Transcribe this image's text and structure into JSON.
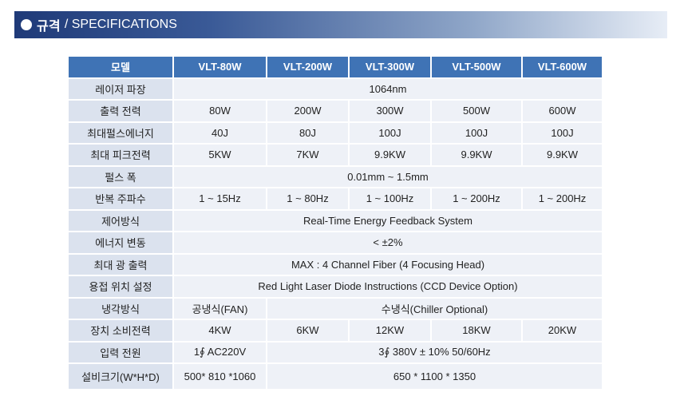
{
  "header": {
    "title": "규격",
    "subtitle": "/ SPECIFICATIONS"
  },
  "colors": {
    "header_dark": "#1f3a78",
    "table_header": "#3f73b5",
    "label_cell": "#dbe2ee",
    "value_cell": "#eef1f7"
  },
  "table": {
    "columns": [
      "모델",
      "VLT-80W",
      "VLT-200W",
      "VLT-300W",
      "VLT-500W",
      "VLT-600W"
    ],
    "rows": {
      "wavelength": {
        "label": "레이저 파장",
        "value": "1064nm"
      },
      "output_power": {
        "label": "출력 전력",
        "values": [
          "80W",
          "200W",
          "300W",
          "500W",
          "600W"
        ]
      },
      "max_pulse_energy": {
        "label": "최대펄스에너지",
        "values": [
          "40J",
          "80J",
          "100J",
          "100J",
          "100J"
        ]
      },
      "max_peak_power": {
        "label": "최대 피크전력",
        "values": [
          "5KW",
          "7KW",
          "9.9KW",
          "9.9KW",
          "9.9KW"
        ]
      },
      "pulse_width": {
        "label": "펄스 폭",
        "value": "0.01mm ~ 1.5mm"
      },
      "rep_frequency": {
        "label": "반복 주파수",
        "values": [
          "1 ~ 15Hz",
          "1 ~ 80Hz",
          "1 ~ 100Hz",
          "1 ~ 200Hz",
          "1 ~ 200Hz"
        ]
      },
      "control": {
        "label": "제어방식",
        "value": "Real-Time Energy Feedback System"
      },
      "energy_variation": {
        "label": "에너지 변동",
        "value": "<  ±2%"
      },
      "max_light_output": {
        "label": "최대 광 출력",
        "value": "MAX : 4 Channel Fiber (4 Focusing Head)"
      },
      "weld_position": {
        "label": "용접 위치 설정",
        "value": "Red Light Laser Diode Instructions (CCD Device Option)"
      },
      "cooling": {
        "label": "냉각방식",
        "first": "공냉식(FAN)",
        "rest": "수냉식(Chiller  Optional)"
      },
      "power_consumption": {
        "label": "장치 소비전력",
        "values": [
          "4KW",
          "6KW",
          "12KW",
          "18KW",
          "20KW"
        ]
      },
      "input_power": {
        "label": "입력 전원",
        "first": "1∮ AC220V",
        "rest": "3∮ 380V ± 10%  50/60Hz"
      },
      "dimensions": {
        "label": "설비크기(W*H*D)",
        "first": "500* 810 *1060",
        "rest": "650 * 1100 * 1350"
      }
    }
  }
}
